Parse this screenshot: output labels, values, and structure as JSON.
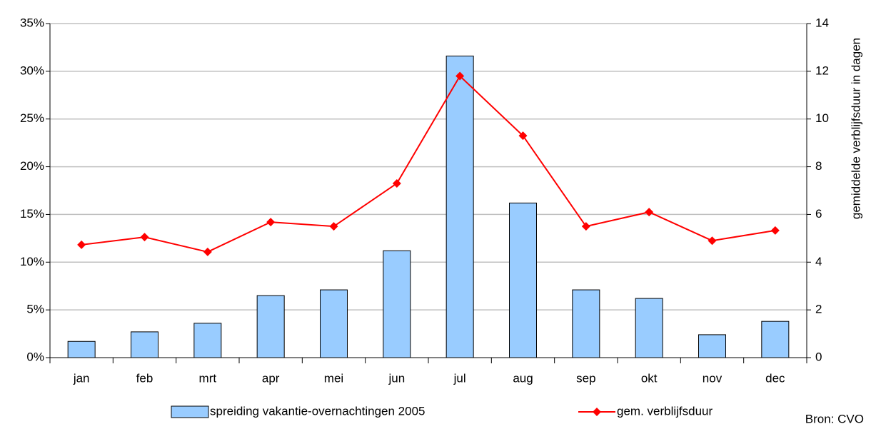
{
  "chart_data": {
    "type": "bar",
    "categories": [
      "jan",
      "feb",
      "mrt",
      "apr",
      "mei",
      "jun",
      "jul",
      "aug",
      "sep",
      "okt",
      "nov",
      "dec"
    ],
    "series": [
      {
        "name": "spreiding vakantie-overnachtingen 2005",
        "type": "bar",
        "color": "#99ccff",
        "values": [
          1.7,
          2.7,
          3.6,
          6.5,
          7.1,
          11.2,
          31.6,
          16.2,
          7.1,
          6.2,
          2.4,
          3.8
        ]
      },
      {
        "name": "gem. verblijfsduur",
        "type": "line",
        "axis": "y2",
        "color": "#ff0000",
        "values": [
          4.73,
          5.05,
          4.43,
          5.68,
          5.5,
          7.3,
          11.8,
          9.3,
          5.5,
          6.1,
          4.9,
          5.33
        ]
      }
    ],
    "ylim": [
      0,
      35
    ],
    "yticks": [
      {
        "value": 0,
        "label": "0%"
      },
      {
        "value": 5,
        "label": "5%"
      },
      {
        "value": 10,
        "label": "10%"
      },
      {
        "value": 15,
        "label": "15%"
      },
      {
        "value": 20,
        "label": "20%"
      },
      {
        "value": 25,
        "label": "25%"
      },
      {
        "value": 30,
        "label": "30%"
      },
      {
        "value": 35,
        "label": "35%"
      }
    ],
    "y2lim": [
      0,
      14
    ],
    "y2ticks": [
      0,
      2,
      4,
      6,
      8,
      10,
      12,
      14
    ],
    "y2label": "gemiddelde verblijfsduur in dagen",
    "annotation": "Bron: CVO",
    "grid": true,
    "legend": "bottom"
  }
}
